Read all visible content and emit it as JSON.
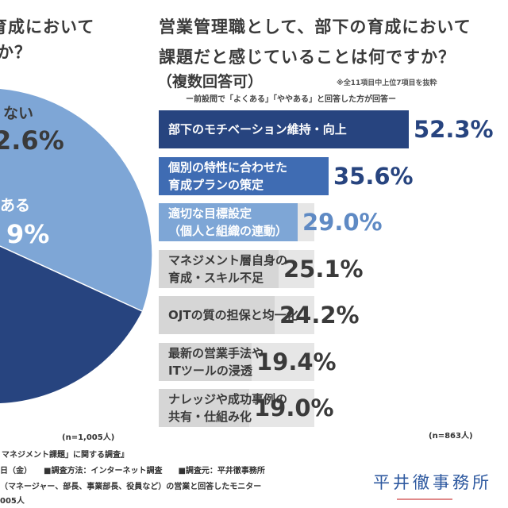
{
  "left": {
    "title_lines": [
      "育成において",
      "か？"
    ],
    "pie_labels": [
      "ない",
      "2.6%",
      "ある",
      "9%"
    ],
    "n_label": "(n=1,005人)"
  },
  "right": {
    "title_lines": [
      "営業管理職として、部下の育成において",
      "課題だと感じていることは何ですか？"
    ],
    "subtitle": "（複数回答可）",
    "note_top": "※全11項目中上位7項目を抜粋",
    "note_sub": "ー前設問で「よくある」「ややある」と回答した方が回答ー",
    "n_label": "(n=863人)"
  },
  "chart_data": {
    "type": "bar",
    "orientation": "horizontal",
    "title": "営業管理職として、部下の育成において課題だと感じていることは何ですか？（複数回答可）",
    "unit": "%",
    "categories": [
      [
        "部下のモチベーション維持・向上"
      ],
      [
        "個別の特性に合わせた",
        "育成プランの策定"
      ],
      [
        "適切な目標設定",
        "（個人と組織の連動）"
      ],
      [
        "マネジメント層自身の",
        "育成・スキル不足"
      ],
      [
        "OJTの質の担保と均一化"
      ],
      [
        "最新の営業手法や",
        "ITツールの浸透"
      ],
      [
        "ナレッジや成功事例の",
        "共有・仕組み化"
      ]
    ],
    "values": [
      52.3,
      35.6,
      29.0,
      25.1,
      24.2,
      19.4,
      19.0
    ],
    "value_labels": [
      "52.3%",
      "35.6%",
      "29.0%",
      "25.1%",
      "24.2%",
      "19.4%",
      "19.0%"
    ],
    "colors": {
      "top": "#27447f",
      "second": "#3f6cb3",
      "third": "#7ea6d6",
      "rest": "#d6d6d6",
      "background": "#e6e6e6"
    }
  },
  "footer": {
    "lines": [
      "マネジメント課題」に関する調査』",
      "日（金）　　■調査方法：インターネット調査　　■調査元：平井徹事務所",
      "（マネージャー、部長、事業部長、役員など）の営業と回答したモニター",
      "005人"
    ]
  },
  "brand": {
    "name": "平井徹事務所",
    "color": "#2f5aa0"
  },
  "pie_colors": {
    "dark": "#27447f",
    "light": "#7ea6d6"
  }
}
